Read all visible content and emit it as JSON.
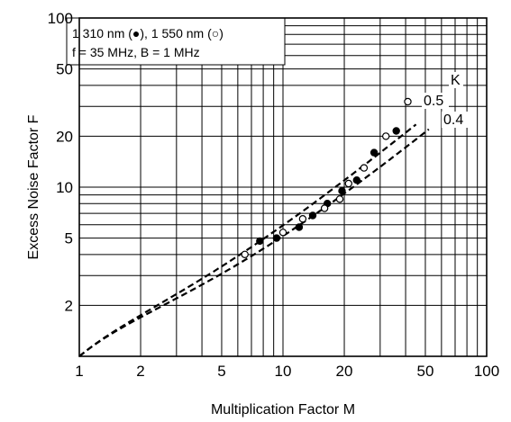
{
  "chart_data": {
    "type": "scatter",
    "title": "",
    "xlabel": "Multiplication Factor  M",
    "ylabel": "Excess Noise Factor  F",
    "x_scale": "log",
    "y_scale": "log",
    "xlim": [
      1,
      100
    ],
    "ylim": [
      1,
      100
    ],
    "grid": true,
    "x_ticks": [
      {
        "value": 1,
        "label": "1"
      },
      {
        "value": 2,
        "label": "2"
      },
      {
        "value": 5,
        "label": "5"
      },
      {
        "value": 10,
        "label": "10"
      },
      {
        "value": 20,
        "label": "20"
      },
      {
        "value": 50,
        "label": "50"
      },
      {
        "value": 100,
        "label": "100"
      }
    ],
    "y_ticks": [
      {
        "value": 2,
        "label": "2"
      },
      {
        "value": 5,
        "label": "5"
      },
      {
        "value": 10,
        "label": "10"
      },
      {
        "value": 20,
        "label": "20"
      },
      {
        "value": 50,
        "label": "50"
      },
      {
        "value": 100,
        "label": "100"
      }
    ],
    "legend_position": "top-left",
    "legend_lines": [
      "1 310 nm (●), 1 550 nm (○)",
      "f = 35 MHz, B = 1 MHz"
    ],
    "curve_group_label": "K",
    "curves": [
      {
        "label": "0.5",
        "k": 0.5,
        "style": "dashed",
        "x_range": [
          1,
          45
        ]
      },
      {
        "label": "0.4",
        "k": 0.4,
        "style": "dashed",
        "x_range": [
          1,
          52
        ]
      }
    ],
    "series": [
      {
        "marker": "filled-circle",
        "points": [
          {
            "x": 7.7,
            "y": 4.8
          },
          {
            "x": 9.3,
            "y": 5.0
          },
          {
            "x": 12.0,
            "y": 5.8
          },
          {
            "x": 14.0,
            "y": 6.8
          },
          {
            "x": 16.5,
            "y": 8.0
          },
          {
            "x": 19.5,
            "y": 9.5
          },
          {
            "x": 23.0,
            "y": 11.0
          },
          {
            "x": 28.0,
            "y": 16.0
          },
          {
            "x": 36.0,
            "y": 21.5
          }
        ]
      },
      {
        "marker": "open-circle",
        "points": [
          {
            "x": 6.5,
            "y": 4.0
          },
          {
            "x": 10.0,
            "y": 5.4
          },
          {
            "x": 12.5,
            "y": 6.5
          },
          {
            "x": 16.0,
            "y": 7.5
          },
          {
            "x": 19.0,
            "y": 8.5
          },
          {
            "x": 21.0,
            "y": 10.5
          },
          {
            "x": 25.0,
            "y": 13.0
          },
          {
            "x": 32.0,
            "y": 20.0
          },
          {
            "x": 41.0,
            "y": 32.0
          }
        ]
      }
    ]
  }
}
